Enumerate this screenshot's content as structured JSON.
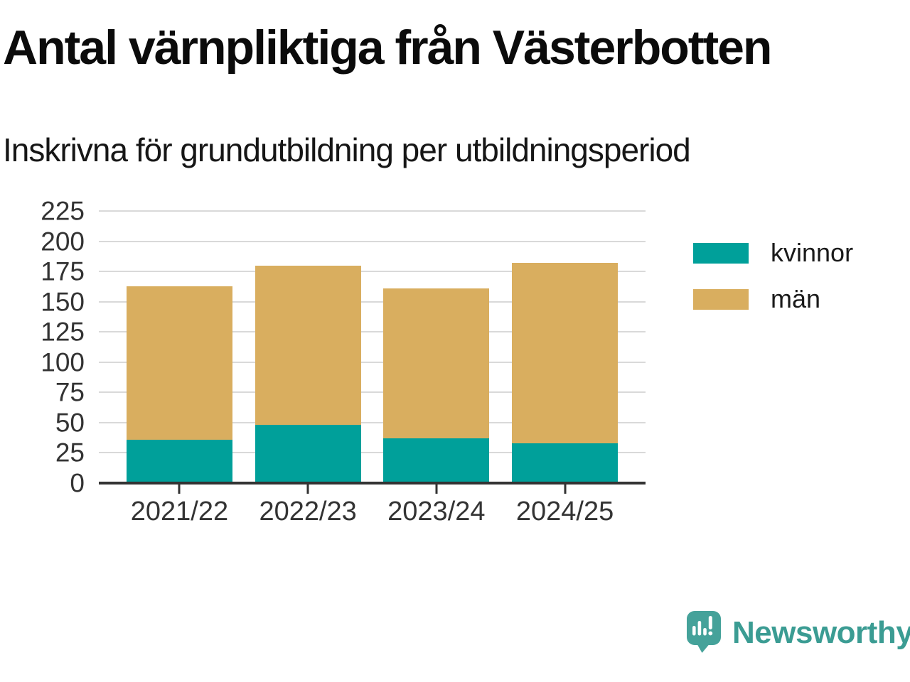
{
  "title": "Antal värnpliktiga från Västerbotten",
  "subtitle": "Inskrivna för grundutbildning per utbildningsperiod",
  "colors": {
    "kvinnor": "#00a09a",
    "man": "#d9ae5f",
    "grid": "#d9d9d9",
    "axis": "#333333",
    "logo_bubble": "#45a29a",
    "logo_text": "#3b9c93"
  },
  "chart_data": {
    "type": "bar",
    "stacked": true,
    "title": "Antal värnpliktiga från Västerbotten",
    "subtitle": "Inskrivna för grundutbildning per utbildningsperiod",
    "categories": [
      "2021/22",
      "2022/23",
      "2023/24",
      "2024/25"
    ],
    "series": [
      {
        "name": "kvinnor",
        "color": "#00a09a",
        "values": [
          36,
          48,
          37,
          33
        ]
      },
      {
        "name": "män",
        "color": "#d9ae5f",
        "values": [
          127,
          132,
          124,
          149
        ]
      }
    ],
    "stack_totals": [
      163,
      180,
      161,
      182
    ],
    "xlabel": "",
    "ylabel": "",
    "ylim": [
      0,
      225
    ],
    "yticks": [
      0,
      25,
      50,
      75,
      100,
      125,
      150,
      175,
      200,
      225
    ],
    "grid": "horizontal",
    "legend_position": "right"
  },
  "legend": {
    "items": [
      {
        "label": "kvinnor",
        "color": "#00a09a"
      },
      {
        "label": "män",
        "color": "#d9ae5f"
      }
    ]
  },
  "logo": {
    "text": "Newsworthy",
    "icon": "speech-bubble-bar-chart"
  }
}
